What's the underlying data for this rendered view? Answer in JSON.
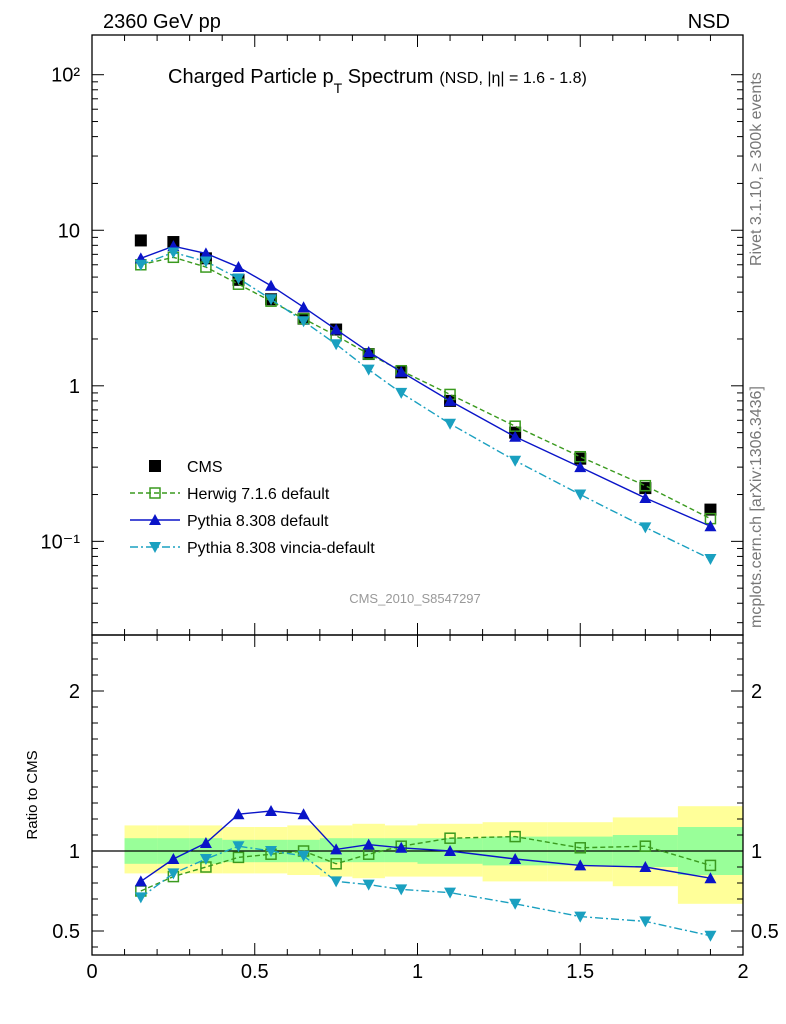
{
  "header": {
    "left": "2360 GeV pp",
    "right": "NSD"
  },
  "side_labels": {
    "rivet": "Rivet 3.1.10, ≥ 300k events",
    "mcplots": "mcplots.cern.ch [arXiv:1306.3436]"
  },
  "watermark": "CMS_2010_S8547297",
  "title": {
    "main": "Charged Particle p",
    "sub": "T",
    "rest": " Spectrum",
    "extra": "(NSD, |η| = 1.6 - 1.8)"
  },
  "colors": {
    "data": "#000000",
    "herwig": "#3a9a1e",
    "pythia": "#0a14c8",
    "vincia": "#1aa0c0",
    "band_inner": "#99ff99",
    "band_outer": "#ffff99"
  },
  "chart_data": [
    {
      "type": "scatter",
      "name": "main",
      "yscale": "log",
      "xlim": [
        0,
        2
      ],
      "ylim": [
        0.025,
        180
      ],
      "yticks": [
        {
          "v": 0.1,
          "label": "10⁻¹"
        },
        {
          "v": 1,
          "label": "1"
        },
        {
          "v": 10,
          "label": "10"
        },
        {
          "v": 100,
          "label": "10²"
        }
      ],
      "legend": {
        "position": "lower-left"
      },
      "series": [
        {
          "name": "CMS",
          "key": "data",
          "marker": "square-filled",
          "style": "none",
          "x": [
            0.15,
            0.25,
            0.35,
            0.45,
            0.55,
            0.65,
            0.75,
            0.85,
            0.95,
            1.1,
            1.3,
            1.5,
            1.7,
            1.9
          ],
          "y": [
            8.6,
            8.4,
            6.6,
            4.8,
            3.6,
            2.7,
            2.3,
            1.6,
            1.22,
            0.8,
            0.5,
            0.34,
            0.22,
            0.16
          ]
        },
        {
          "name": "Herwig 7.1.6 default",
          "key": "herwig",
          "marker": "square-open",
          "style": "dashed",
          "x": [
            0.15,
            0.25,
            0.35,
            0.45,
            0.55,
            0.65,
            0.75,
            0.85,
            0.95,
            1.1,
            1.3,
            1.5,
            1.7,
            1.9
          ],
          "y": [
            6.0,
            6.7,
            5.8,
            4.5,
            3.5,
            2.7,
            2.1,
            1.6,
            1.25,
            0.88,
            0.55,
            0.35,
            0.228,
            0.14
          ]
        },
        {
          "name": "Pythia 8.308 default",
          "key": "pythia",
          "marker": "triangle-up",
          "style": "solid",
          "x": [
            0.15,
            0.25,
            0.35,
            0.45,
            0.55,
            0.65,
            0.75,
            0.85,
            0.95,
            1.1,
            1.3,
            1.5,
            1.7,
            1.9
          ],
          "y": [
            6.6,
            7.9,
            7.1,
            5.8,
            4.4,
            3.2,
            2.3,
            1.65,
            1.23,
            0.8,
            0.47,
            0.3,
            0.19,
            0.125
          ]
        },
        {
          "name": "Pythia 8.308 vincia-default",
          "key": "vincia",
          "marker": "triangle-down",
          "style": "dashdot",
          "x": [
            0.15,
            0.25,
            0.35,
            0.45,
            0.55,
            0.65,
            0.75,
            0.85,
            0.95,
            1.1,
            1.3,
            1.5,
            1.7,
            1.9
          ],
          "y": [
            6.0,
            7.2,
            6.3,
            4.9,
            3.6,
            2.6,
            1.85,
            1.27,
            0.9,
            0.57,
            0.33,
            0.2,
            0.123,
            0.077
          ]
        }
      ]
    },
    {
      "type": "scatter",
      "name": "ratio",
      "ylabel": "Ratio to CMS",
      "xlim": [
        0,
        2
      ],
      "ylim": [
        0.35,
        2.35
      ],
      "xticks": [
        0,
        0.5,
        1,
        1.5,
        2
      ],
      "yticks": [
        {
          "v": 0.5,
          "label": "0.5"
        },
        {
          "v": 1,
          "label": "1"
        },
        {
          "v": 2,
          "label": "2"
        }
      ],
      "band": [
        {
          "x0": 0.1,
          "x1": 0.2,
          "inner": [
            0.92,
            1.08
          ],
          "outer": [
            0.86,
            1.16
          ]
        },
        {
          "x0": 0.2,
          "x1": 0.3,
          "inner": [
            0.92,
            1.08
          ],
          "outer": [
            0.86,
            1.16
          ]
        },
        {
          "x0": 0.3,
          "x1": 0.4,
          "inner": [
            0.92,
            1.08
          ],
          "outer": [
            0.86,
            1.16
          ]
        },
        {
          "x0": 0.4,
          "x1": 0.5,
          "inner": [
            0.93,
            1.07
          ],
          "outer": [
            0.86,
            1.15
          ]
        },
        {
          "x0": 0.5,
          "x1": 0.6,
          "inner": [
            0.93,
            1.07
          ],
          "outer": [
            0.86,
            1.15
          ]
        },
        {
          "x0": 0.6,
          "x1": 0.7,
          "inner": [
            0.93,
            1.07
          ],
          "outer": [
            0.85,
            1.16
          ]
        },
        {
          "x0": 0.7,
          "x1": 0.8,
          "inner": [
            0.93,
            1.08
          ],
          "outer": [
            0.84,
            1.16
          ]
        },
        {
          "x0": 0.8,
          "x1": 0.9,
          "inner": [
            0.93,
            1.08
          ],
          "outer": [
            0.83,
            1.17
          ]
        },
        {
          "x0": 0.9,
          "x1": 1.0,
          "inner": [
            0.93,
            1.08
          ],
          "outer": [
            0.84,
            1.16
          ]
        },
        {
          "x0": 1.0,
          "x1": 1.2,
          "inner": [
            0.92,
            1.08
          ],
          "outer": [
            0.84,
            1.17
          ]
        },
        {
          "x0": 1.2,
          "x1": 1.4,
          "inner": [
            0.91,
            1.09
          ],
          "outer": [
            0.81,
            1.18
          ]
        },
        {
          "x0": 1.4,
          "x1": 1.6,
          "inner": [
            0.91,
            1.09
          ],
          "outer": [
            0.81,
            1.18
          ]
        },
        {
          "x0": 1.6,
          "x1": 1.8,
          "inner": [
            0.9,
            1.1
          ],
          "outer": [
            0.78,
            1.21
          ]
        },
        {
          "x0": 1.8,
          "x1": 2.0,
          "inner": [
            0.85,
            1.15
          ],
          "outer": [
            0.67,
            1.28
          ]
        }
      ],
      "series": [
        {
          "name": "Herwig 7.1.6 default",
          "key": "herwig",
          "marker": "square-open",
          "style": "dashed",
          "x": [
            0.15,
            0.25,
            0.35,
            0.45,
            0.55,
            0.65,
            0.75,
            0.85,
            0.95,
            1.1,
            1.3,
            1.5,
            1.7,
            1.9
          ],
          "y": [
            0.75,
            0.84,
            0.9,
            0.96,
            0.98,
            1.0,
            0.92,
            0.98,
            1.03,
            1.08,
            1.09,
            1.02,
            1.03,
            0.91
          ]
        },
        {
          "name": "Pythia 8.308 default",
          "key": "pythia",
          "marker": "triangle-up",
          "style": "solid",
          "x": [
            0.15,
            0.25,
            0.35,
            0.45,
            0.55,
            0.65,
            0.75,
            0.85,
            0.95,
            1.1,
            1.3,
            1.5,
            1.7,
            1.9
          ],
          "y": [
            0.81,
            0.95,
            1.05,
            1.23,
            1.25,
            1.23,
            1.01,
            1.04,
            1.02,
            1.0,
            0.95,
            0.91,
            0.9,
            0.83
          ]
        },
        {
          "name": "Pythia 8.308 vincia-default",
          "key": "vincia",
          "marker": "triangle-down",
          "style": "dashdot",
          "x": [
            0.15,
            0.25,
            0.35,
            0.45,
            0.55,
            0.65,
            0.75,
            0.85,
            0.95,
            1.1,
            1.3,
            1.5,
            1.7,
            1.9
          ],
          "y": [
            0.71,
            0.86,
            0.95,
            1.03,
            1.0,
            0.97,
            0.81,
            0.79,
            0.76,
            0.74,
            0.67,
            0.59,
            0.56,
            0.47
          ]
        }
      ]
    }
  ]
}
